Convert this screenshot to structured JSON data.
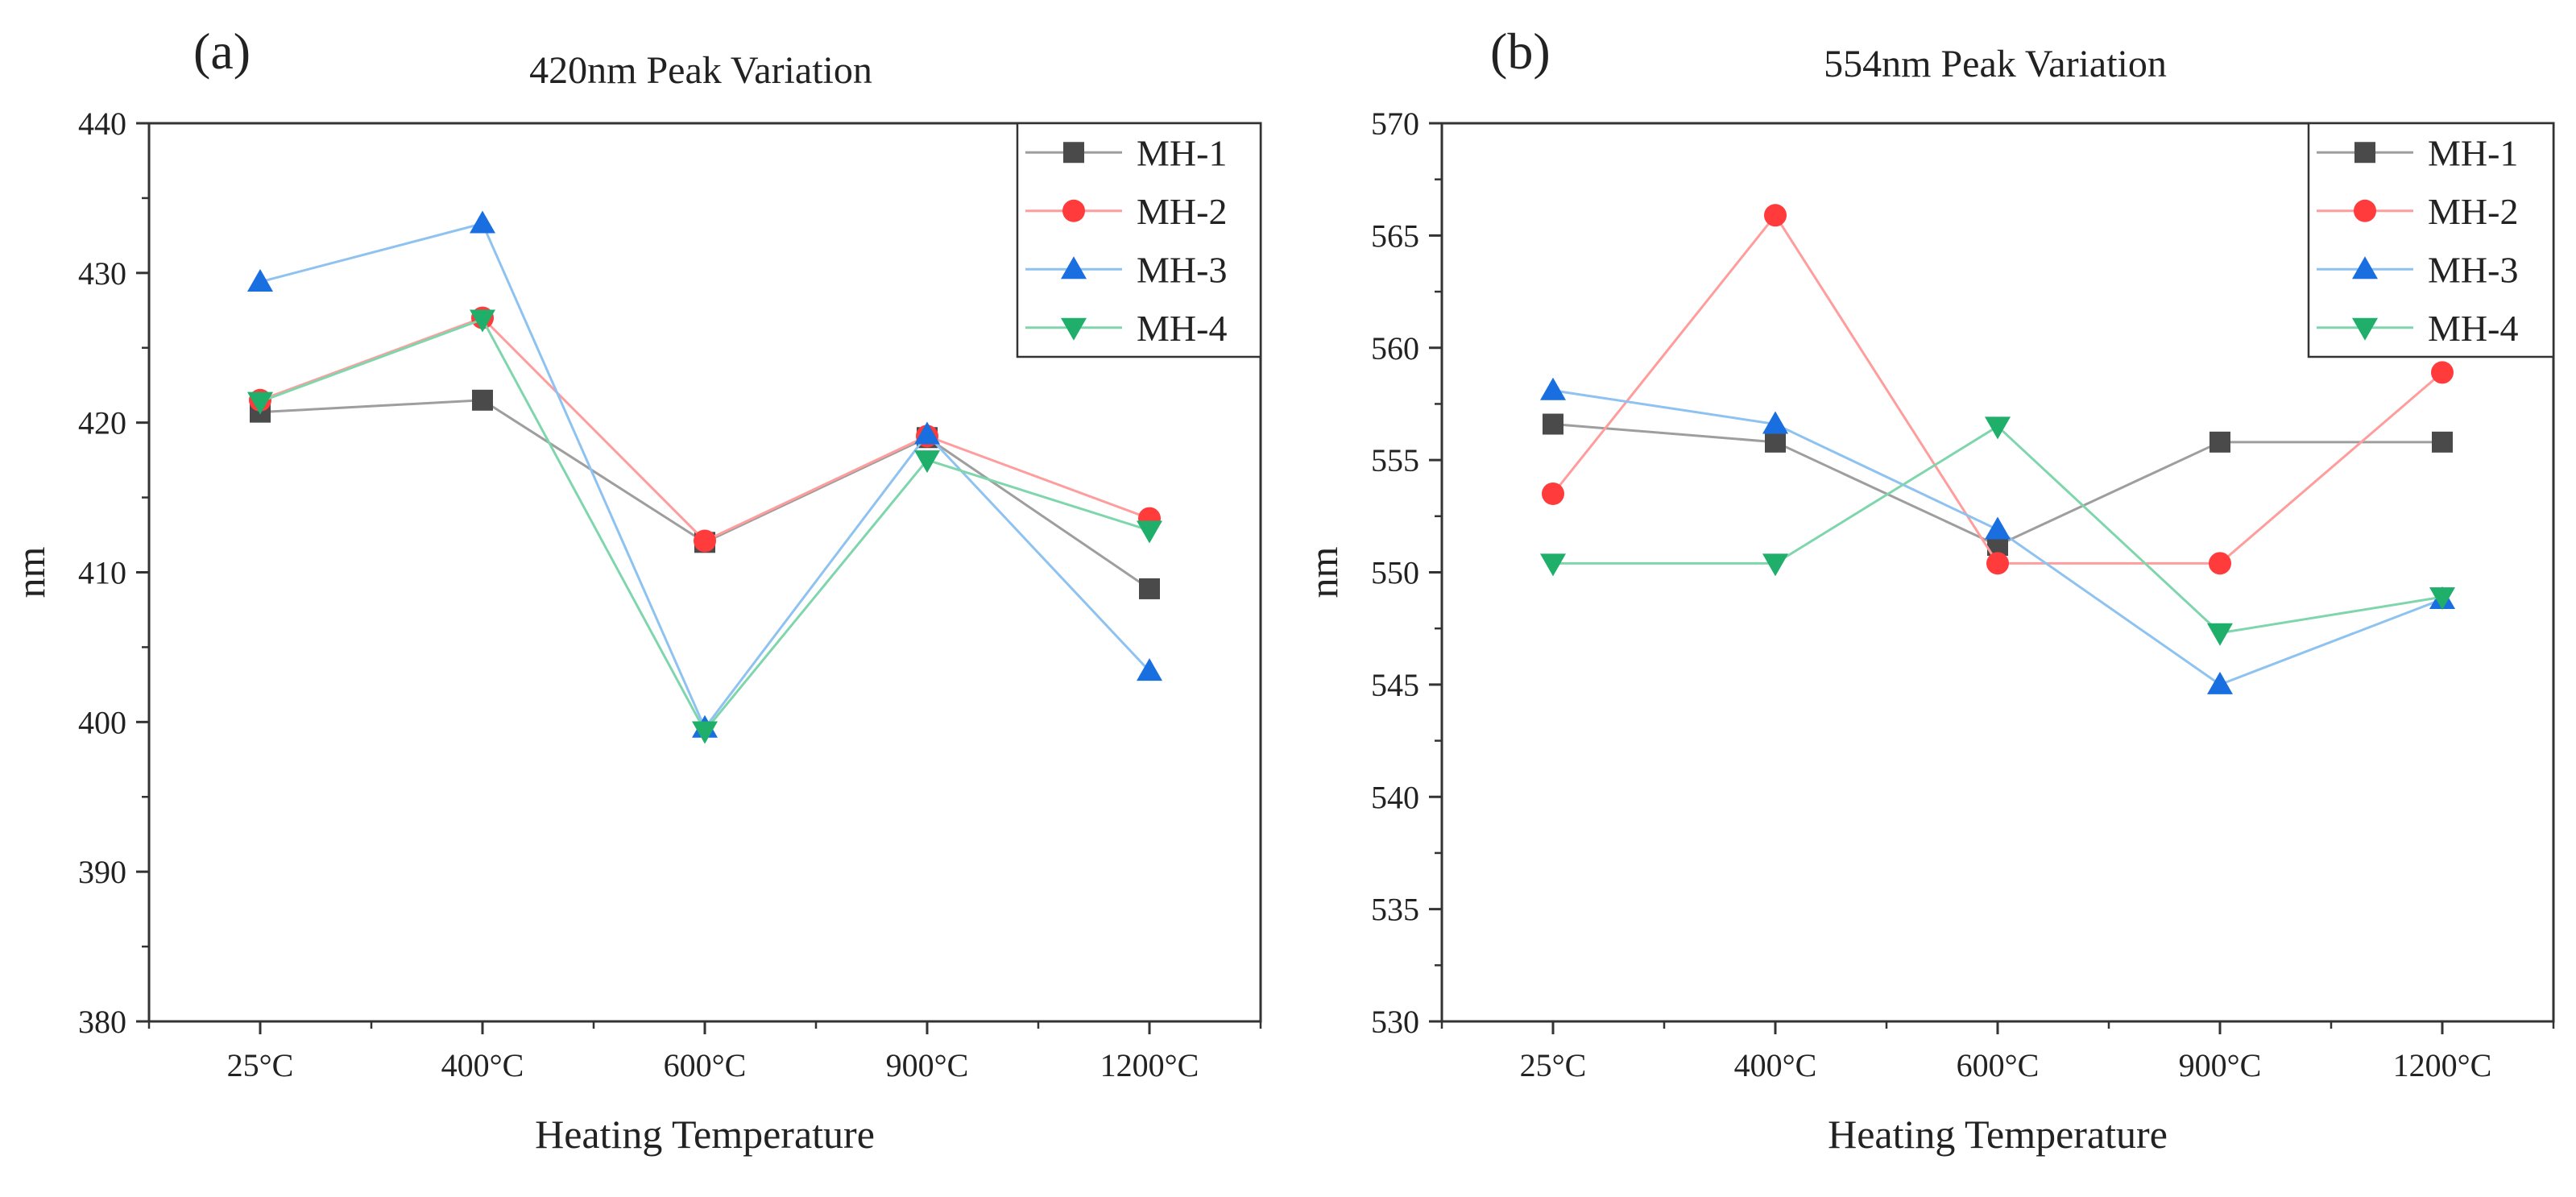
{
  "chart_data": [
    {
      "type": "line",
      "panel_label": "(a)",
      "title": "420nm Peak Variation",
      "xlabel": "Heating Temperature",
      "ylabel": "nm",
      "categories": [
        "25°C",
        "400°C",
        "600°C",
        "900°C",
        "1200°C"
      ],
      "ylim": [
        380,
        440
      ],
      "yticks": [
        380,
        390,
        400,
        410,
        420,
        430,
        440
      ],
      "legend_position": "top-right",
      "grid": false,
      "series": [
        {
          "name": "MH-1",
          "color": "#4a4a4a",
          "line_color": "#9e9e9e",
          "marker": "square",
          "values": [
            420.7,
            421.5,
            412.0,
            419.0,
            408.9
          ]
        },
        {
          "name": "MH-2",
          "color": "#ff3b3b",
          "line_color": "#ff9d9d",
          "marker": "circle",
          "values": [
            421.5,
            427.0,
            412.1,
            419.1,
            413.6
          ]
        },
        {
          "name": "MH-3",
          "color": "#1a6fe0",
          "line_color": "#8ec2f0",
          "marker": "triangle-up",
          "values": [
            429.4,
            433.3,
            399.6,
            419.2,
            403.4
          ]
        },
        {
          "name": "MH-4",
          "color": "#1faf6a",
          "line_color": "#7fd6ad",
          "marker": "triangle-down",
          "values": [
            421.4,
            426.9,
            399.4,
            417.5,
            412.8
          ]
        }
      ]
    },
    {
      "type": "line",
      "panel_label": "(b)",
      "title": "554nm Peak Variation",
      "xlabel": "Heating Temperature",
      "ylabel": "nm",
      "categories": [
        "25°C",
        "400°C",
        "600°C",
        "900°C",
        "1200°C"
      ],
      "ylim": [
        530,
        570
      ],
      "yticks": [
        530,
        535,
        540,
        545,
        550,
        555,
        560,
        565,
        570
      ],
      "legend_position": "top-right",
      "grid": false,
      "series": [
        {
          "name": "MH-1",
          "color": "#4a4a4a",
          "line_color": "#9e9e9e",
          "marker": "square",
          "values": [
            556.6,
            555.8,
            551.2,
            555.8,
            555.8
          ]
        },
        {
          "name": "MH-2",
          "color": "#ff3b3b",
          "line_color": "#ff9d9d",
          "marker": "circle",
          "values": [
            553.5,
            565.9,
            550.4,
            550.4,
            558.9
          ]
        },
        {
          "name": "MH-3",
          "color": "#1a6fe0",
          "line_color": "#8ec2f0",
          "marker": "triangle-up",
          "values": [
            558.1,
            556.6,
            551.9,
            545.0,
            548.8
          ]
        },
        {
          "name": "MH-4",
          "color": "#1faf6a",
          "line_color": "#7fd6ad",
          "marker": "triangle-down",
          "values": [
            550.4,
            550.4,
            556.5,
            547.3,
            548.9
          ]
        }
      ]
    }
  ]
}
